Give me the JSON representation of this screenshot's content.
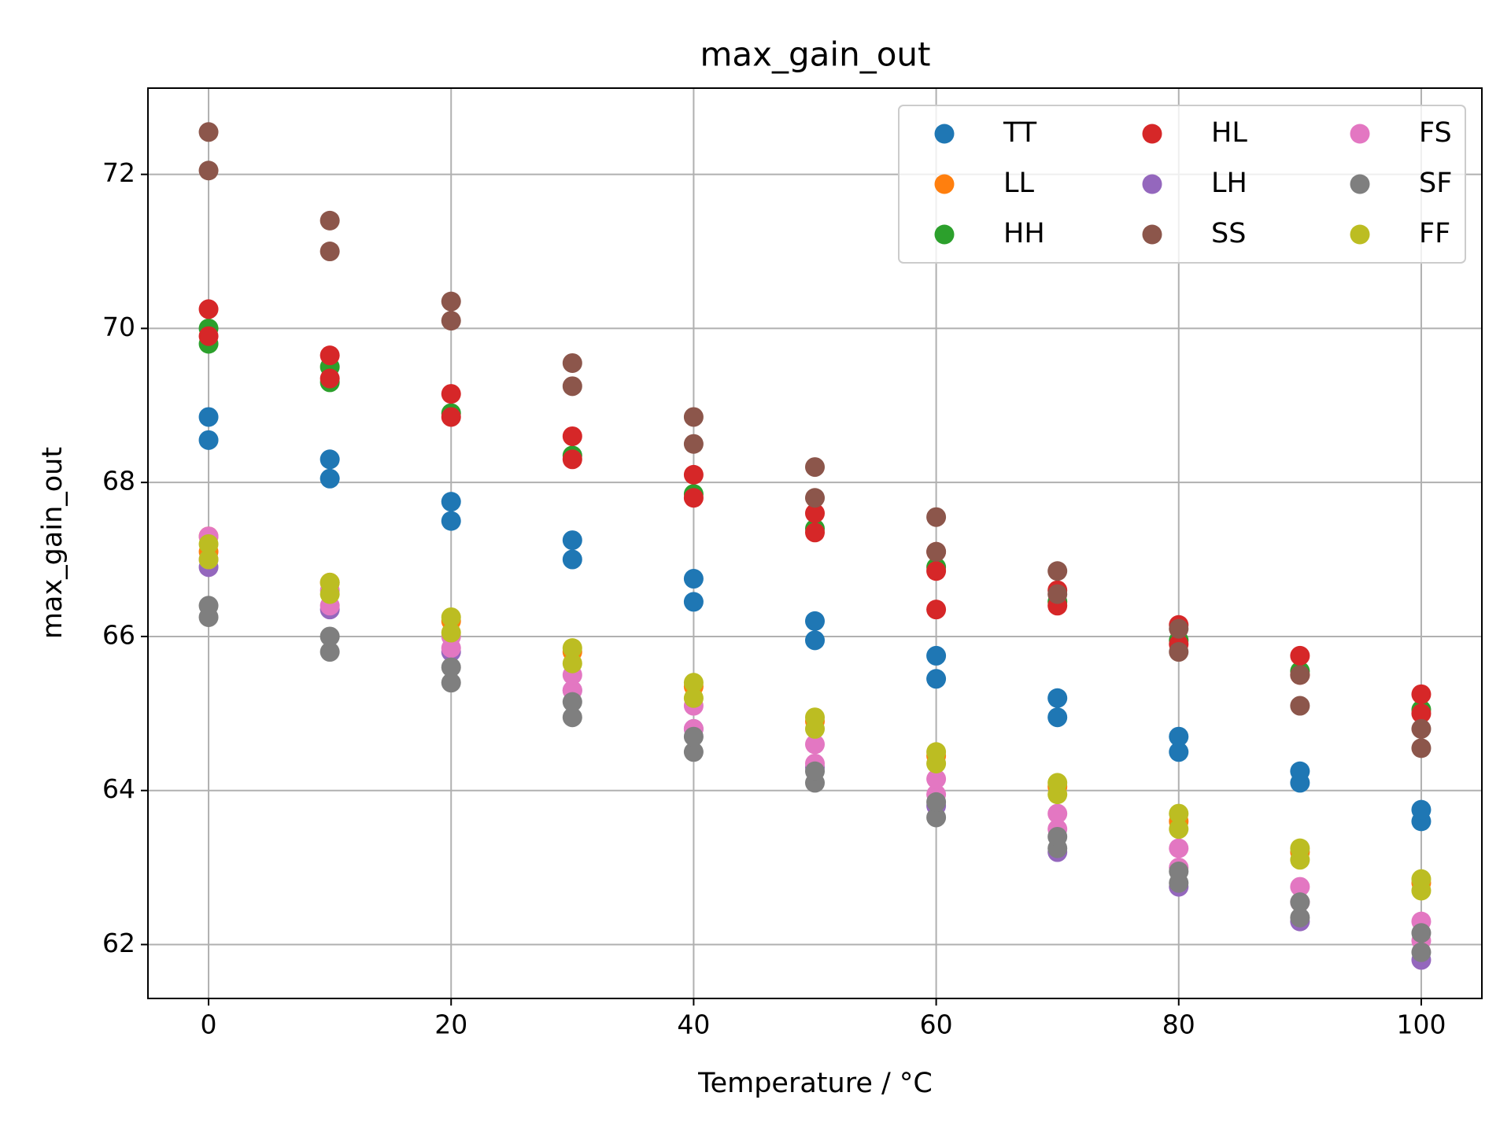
{
  "chart_data": {
    "type": "scatter",
    "title": "max_gain_out",
    "x_label": "Temperature / °C",
    "y_label": "max_gain_out",
    "xlim": [
      -5,
      105
    ],
    "ylim": [
      61.3,
      73.12
    ],
    "xticks": [
      0,
      20,
      40,
      60,
      80,
      100
    ],
    "yticks": [
      62,
      64,
      66,
      68,
      70,
      72
    ],
    "grid": true,
    "legend": "upper right",
    "legend_columns": 3,
    "series": [
      {
        "name": "TT",
        "color": "#1f77b4",
        "x": [
          0,
          0,
          10,
          10,
          20,
          20,
          30,
          30,
          40,
          40,
          50,
          50,
          60,
          60,
          70,
          70,
          80,
          80,
          90,
          90,
          100,
          100
        ],
        "values": [
          68.55,
          68.85,
          68.05,
          68.3,
          67.5,
          67.75,
          67.0,
          67.25,
          66.45,
          66.75,
          65.95,
          66.2,
          65.45,
          65.75,
          64.95,
          65.2,
          64.5,
          64.7,
          64.1,
          64.25,
          63.6,
          63.75
        ]
      },
      {
        "name": "LL",
        "color": "#ff7f0e",
        "x": [
          0,
          0,
          10,
          20,
          30,
          40,
          50,
          60,
          70,
          80,
          90,
          100
        ],
        "values": [
          67.1,
          67.3,
          66.7,
          66.2,
          65.8,
          65.35,
          64.9,
          64.45,
          64.05,
          63.6,
          63.2,
          62.8
        ]
      },
      {
        "name": "HH",
        "color": "#2ca02c",
        "x": [
          0,
          0,
          10,
          10,
          20,
          30,
          40,
          50,
          60,
          70,
          80,
          90,
          100
        ],
        "values": [
          69.8,
          70.0,
          69.3,
          69.5,
          68.9,
          68.35,
          67.85,
          67.4,
          66.9,
          66.45,
          65.95,
          65.55,
          65.05
        ]
      },
      {
        "name": "HL",
        "color": "#d62728",
        "x": [
          0,
          0,
          10,
          10,
          20,
          20,
          30,
          30,
          40,
          40,
          50,
          50,
          60,
          60,
          60,
          70,
          70,
          80,
          80,
          90,
          90,
          100,
          100
        ],
        "values": [
          69.9,
          70.25,
          69.35,
          69.65,
          68.85,
          69.15,
          68.3,
          68.6,
          67.8,
          68.1,
          67.35,
          67.6,
          66.35,
          66.85,
          67.1,
          66.4,
          66.6,
          65.9,
          66.15,
          65.5,
          65.75,
          65.0,
          65.25
        ]
      },
      {
        "name": "LH",
        "color": "#9467bd",
        "x": [
          0,
          10,
          20,
          30,
          40,
          50,
          60,
          70,
          80,
          90,
          100
        ],
        "values": [
          66.9,
          66.35,
          65.8,
          65.3,
          64.8,
          64.3,
          63.8,
          63.2,
          62.75,
          62.3,
          61.8
        ]
      },
      {
        "name": "SS",
        "color": "#8c564b",
        "x": [
          0,
          0,
          10,
          10,
          20,
          20,
          30,
          30,
          40,
          40,
          50,
          50,
          60,
          60,
          70,
          70,
          80,
          80,
          90,
          90,
          100,
          100
        ],
        "values": [
          72.05,
          72.55,
          71.0,
          71.4,
          70.1,
          70.35,
          69.25,
          69.55,
          68.5,
          68.85,
          67.8,
          68.2,
          67.1,
          67.55,
          66.55,
          66.85,
          65.8,
          66.1,
          65.1,
          65.5,
          64.55,
          64.8
        ]
      },
      {
        "name": "FS",
        "color": "#e377c2",
        "x": [
          0,
          0,
          10,
          10,
          20,
          20,
          30,
          30,
          40,
          40,
          50,
          50,
          60,
          60,
          70,
          70,
          80,
          80,
          90,
          90,
          100,
          100
        ],
        "values": [
          67.0,
          67.3,
          66.4,
          66.6,
          65.85,
          66.0,
          65.3,
          65.5,
          64.8,
          65.1,
          64.35,
          64.6,
          63.95,
          64.15,
          63.5,
          63.7,
          63.0,
          63.25,
          62.55,
          62.75,
          62.05,
          62.3
        ]
      },
      {
        "name": "SF",
        "color": "#7f7f7f",
        "x": [
          0,
          0,
          10,
          10,
          20,
          20,
          30,
          30,
          40,
          40,
          50,
          50,
          60,
          60,
          70,
          70,
          80,
          80,
          90,
          90,
          100,
          100
        ],
        "values": [
          66.25,
          66.4,
          65.8,
          66.0,
          65.4,
          65.6,
          64.95,
          65.15,
          64.5,
          64.7,
          64.1,
          64.25,
          63.65,
          63.85,
          63.25,
          63.4,
          62.8,
          62.95,
          62.35,
          62.55,
          61.9,
          62.15
        ]
      },
      {
        "name": "FF",
        "color": "#bcbd22",
        "x": [
          0,
          0,
          10,
          10,
          20,
          20,
          30,
          30,
          40,
          40,
          50,
          50,
          60,
          60,
          70,
          70,
          80,
          80,
          90,
          90,
          100,
          100
        ],
        "values": [
          67.0,
          67.2,
          66.55,
          66.7,
          66.05,
          66.25,
          65.65,
          65.85,
          65.2,
          65.4,
          64.8,
          64.95,
          64.35,
          64.5,
          63.95,
          64.1,
          63.5,
          63.7,
          63.1,
          63.25,
          62.7,
          62.85
        ]
      }
    ]
  }
}
